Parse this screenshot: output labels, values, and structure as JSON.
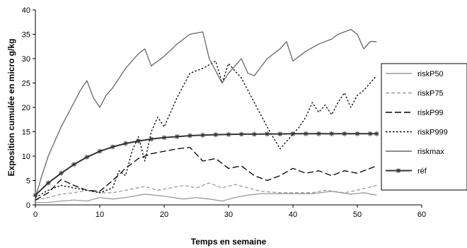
{
  "chart_data": {
    "type": "line",
    "xlabel": "Temps en semaine",
    "ylabel": "Exposition cumulée en micro g/kg",
    "xlim": [
      0,
      60
    ],
    "ylim": [
      0,
      40
    ],
    "xticks": [
      0,
      10,
      20,
      30,
      40,
      50,
      60
    ],
    "yticks": [
      0,
      5,
      10,
      15,
      20,
      25,
      30,
      35,
      40
    ],
    "grid": false,
    "legend_position": "right",
    "series": [
      {
        "name": "riskP50",
        "color": "#9a9a9a",
        "dash": "solid",
        "marker": "none",
        "x": [
          0,
          2,
          4,
          6,
          8,
          10,
          12,
          14,
          17,
          20,
          23,
          25,
          27,
          29,
          31,
          33,
          35,
          38,
          40,
          43,
          46,
          49,
          51,
          53
        ],
        "y": [
          0.5,
          0.5,
          0.8,
          1.0,
          0.8,
          1.5,
          1.2,
          1.5,
          2.2,
          1.8,
          1.2,
          1.5,
          1.2,
          0.8,
          1.5,
          2.0,
          2.3,
          2.3,
          2.3,
          2.3,
          2.8,
          2.2,
          2.5,
          2.0
        ]
      },
      {
        "name": "riskP75",
        "color": "#9a9a9a",
        "dash": "dash",
        "marker": "none",
        "x": [
          0,
          2,
          4,
          6,
          8,
          10,
          12,
          14,
          17,
          19,
          21,
          23,
          25,
          27,
          29,
          31,
          33,
          35,
          38,
          40,
          43,
          45,
          48,
          50,
          53
        ],
        "y": [
          1.0,
          1.5,
          2.2,
          2.5,
          3.0,
          2.5,
          2.5,
          3.0,
          3.8,
          3.0,
          3.5,
          4.0,
          3.5,
          4.5,
          3.5,
          4.2,
          3.5,
          2.8,
          2.5,
          2.5,
          2.5,
          3.0,
          2.5,
          3.0,
          4.0
        ]
      },
      {
        "name": "riskP99",
        "color": "#000000",
        "dash": "longdash",
        "marker": "none",
        "x": [
          0,
          2,
          4,
          6,
          8,
          10,
          12,
          14,
          16,
          18,
          20,
          22,
          24,
          26,
          28,
          30,
          32,
          34,
          36,
          38,
          40,
          42,
          44,
          46,
          48,
          50,
          53
        ],
        "y": [
          1.0,
          2.5,
          5.2,
          4.0,
          3.0,
          2.8,
          5.0,
          7.5,
          9.5,
          10.5,
          11.0,
          11.5,
          11.8,
          9.0,
          9.5,
          7.5,
          8.0,
          6.0,
          5.0,
          6.0,
          7.5,
          6.5,
          7.0,
          6.0,
          7.0,
          6.5,
          8.0
        ]
      },
      {
        "name": "riskP999",
        "color": "#000000",
        "dash": "dot",
        "marker": "none",
        "x": [
          0,
          2,
          4,
          6,
          8,
          10,
          12,
          13,
          14,
          15,
          16,
          17,
          18,
          19,
          20,
          21,
          22,
          24,
          26,
          28,
          29,
          30,
          32,
          34,
          36,
          38,
          39,
          41,
          42,
          43,
          44,
          45,
          46,
          47,
          48,
          49,
          50,
          51,
          53
        ],
        "y": [
          1.5,
          3.0,
          4.0,
          3.5,
          3.0,
          2.5,
          3.5,
          7.0,
          6.0,
          11.0,
          14.0,
          9.0,
          15.0,
          18.0,
          16.0,
          19.0,
          22.0,
          27.0,
          28.0,
          29.5,
          25.0,
          29.0,
          26.0,
          21.0,
          16.0,
          11.5,
          13.0,
          16.0,
          18.0,
          21.0,
          19.0,
          20.5,
          18.5,
          21.0,
          23.0,
          20.0,
          22.5,
          23.5,
          26.5
        ]
      },
      {
        "name": "riskmax",
        "color": "#666666",
        "dash": "solid",
        "marker": "none",
        "x": [
          0,
          1,
          2,
          3,
          4,
          5,
          6,
          7,
          8,
          9,
          10,
          11,
          12,
          14,
          16,
          17,
          18,
          20,
          22,
          24,
          26,
          27,
          28,
          29,
          30,
          31,
          32,
          33,
          34,
          36,
          38,
          39,
          40,
          42,
          44,
          46,
          47,
          48,
          49,
          50,
          51,
          52,
          53
        ],
        "y": [
          1.5,
          6.0,
          10.0,
          13.0,
          16.0,
          18.5,
          21.0,
          23.5,
          25.5,
          22.0,
          20.0,
          22.5,
          24.0,
          28.0,
          31.0,
          32.0,
          28.5,
          30.5,
          33.0,
          35.0,
          35.5,
          30.0,
          27.5,
          25.0,
          27.0,
          28.5,
          30.0,
          27.0,
          26.5,
          30.0,
          32.0,
          33.5,
          29.5,
          31.5,
          33.0,
          34.0,
          35.0,
          35.5,
          36.0,
          35.0,
          32.0,
          33.5,
          33.5
        ]
      },
      {
        "name": "réf",
        "color": "#333333",
        "dash": "solid",
        "marker": "asterisk",
        "x": [
          0,
          2,
          4,
          6,
          8,
          10,
          12,
          14,
          16,
          18,
          20,
          22,
          24,
          26,
          28,
          30,
          32,
          34,
          36,
          38,
          40,
          42,
          44,
          46,
          48,
          50,
          52,
          53
        ],
        "y": [
          2.0,
          4.5,
          6.5,
          8.3,
          9.8,
          11.0,
          11.9,
          12.6,
          13.1,
          13.5,
          13.8,
          14.0,
          14.2,
          14.3,
          14.4,
          14.45,
          14.5,
          14.5,
          14.55,
          14.55,
          14.6,
          14.6,
          14.6,
          14.6,
          14.6,
          14.6,
          14.6,
          14.6
        ]
      }
    ]
  }
}
